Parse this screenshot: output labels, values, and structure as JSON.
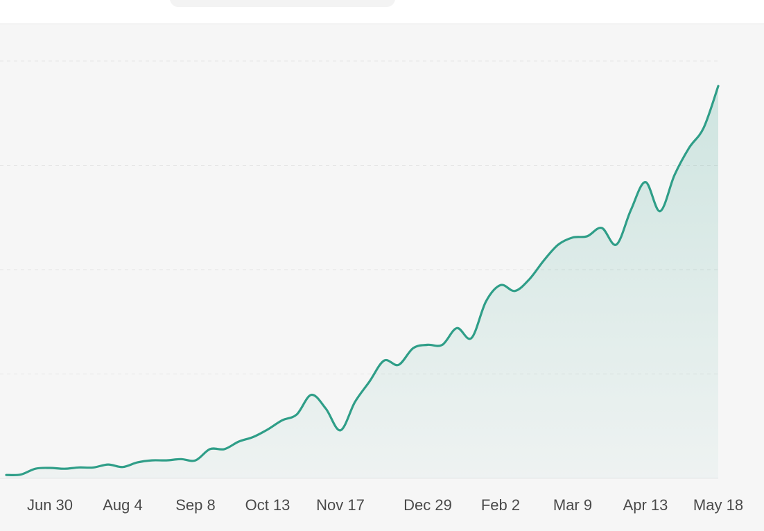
{
  "chart_data": {
    "type": "area",
    "title": "",
    "xlabel": "",
    "ylabel": "",
    "x_tick_labels": [
      "Jun 30",
      "Aug 4",
      "Sep 8",
      "Oct 13",
      "Nov 17",
      "Dec 29",
      "Feb 2",
      "Mar 9",
      "Apr 13",
      "May 18"
    ],
    "y_axis_labels_visible": false,
    "ylim": [
      0,
      100
    ],
    "grid": true,
    "legend": "none",
    "series": [
      {
        "color": "#2f9e88",
        "fill_color": "#2f9e88",
        "x": [
          "2024-06-09",
          "2024-06-16",
          "2024-06-23",
          "2024-06-30",
          "2024-07-07",
          "2024-07-14",
          "2024-07-21",
          "2024-07-28",
          "2024-08-04",
          "2024-08-11",
          "2024-08-18",
          "2024-08-25",
          "2024-09-01",
          "2024-09-08",
          "2024-09-15",
          "2024-09-22",
          "2024-09-29",
          "2024-10-06",
          "2024-10-13",
          "2024-10-20",
          "2024-10-27",
          "2024-11-03",
          "2024-11-10",
          "2024-11-17",
          "2024-11-24",
          "2024-12-01",
          "2024-12-08",
          "2024-12-15",
          "2024-12-22",
          "2024-12-29",
          "2025-01-05",
          "2025-01-12",
          "2025-01-19",
          "2025-01-26",
          "2025-02-02",
          "2025-02-09",
          "2025-02-16",
          "2025-02-23",
          "2025-03-02",
          "2025-03-09",
          "2025-03-16",
          "2025-03-23",
          "2025-03-30",
          "2025-04-06",
          "2025-04-13",
          "2025-04-20",
          "2025-04-27",
          "2025-05-04",
          "2025-05-11",
          "2025-05-18"
        ],
        "values": [
          0.8,
          0.9,
          2.3,
          2.5,
          2.3,
          2.6,
          2.6,
          3.3,
          2.7,
          3.8,
          4.3,
          4.3,
          4.6,
          4.3,
          7.0,
          7.0,
          8.8,
          9.9,
          11.7,
          13.9,
          15.3,
          20.0,
          16.7,
          11.5,
          18.3,
          23.2,
          28.2,
          27.2,
          31.2,
          32.0,
          32.0,
          36.0,
          33.6,
          42.4,
          46.3,
          44.9,
          47.7,
          52.2,
          56.0,
          57.7,
          58.0,
          60.0,
          56.0,
          64.3,
          71.0,
          64.0,
          72.7,
          79.2,
          84.0,
          94.0
        ]
      }
    ]
  }
}
